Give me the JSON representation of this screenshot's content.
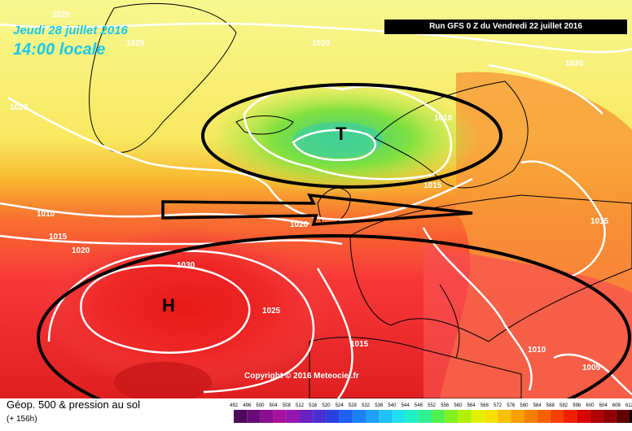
{
  "header": {
    "date_line": "Jeudi 28 juillet 2016",
    "time_line": "14:00 locale",
    "run_info": "Run GFS 0 Z du Vendredi 22 juillet 2016"
  },
  "map": {
    "isobar_labels": [
      "1020",
      "1025",
      "1020",
      "1020",
      "1020",
      "1010",
      "1015",
      "1010",
      "1015",
      "1020",
      "1020",
      "1030",
      "1025",
      "1015",
      "1015",
      "1010",
      "1005"
    ],
    "low_symbol": "T",
    "high_symbol": "H"
  },
  "footer": {
    "copyright": "Copyright © 2016 Meteociel.fr",
    "legend_title": "Géop. 500 & pression au sol",
    "legend_subtitle": "(+ 156h)"
  },
  "colorbar": {
    "ticks": [
      "492",
      "496",
      "500",
      "504",
      "508",
      "512",
      "516",
      "520",
      "524",
      "528",
      "532",
      "536",
      "540",
      "544",
      "548",
      "552",
      "556",
      "560",
      "564",
      "568",
      "572",
      "576",
      "580",
      "584",
      "588",
      "592",
      "596",
      "600",
      "604",
      "608",
      "612"
    ],
    "colors": [
      "#4b0a5a",
      "#6a0a78",
      "#8a0e8e",
      "#a8109e",
      "#9416b0",
      "#6a20c0",
      "#4a30d0",
      "#2a40e0",
      "#1e60f0",
      "#1e80f8",
      "#1ea0f8",
      "#20c0f8",
      "#20e0f0",
      "#20f0c8",
      "#30f090",
      "#50f050",
      "#80f020",
      "#b0f000",
      "#e0f000",
      "#f8e000",
      "#f8c000",
      "#f8a000",
      "#f88000",
      "#f86000",
      "#f84000",
      "#f02000",
      "#d80000",
      "#b00000",
      "#900000",
      "#600000"
    ],
    "overflow_color": "#000000"
  }
}
